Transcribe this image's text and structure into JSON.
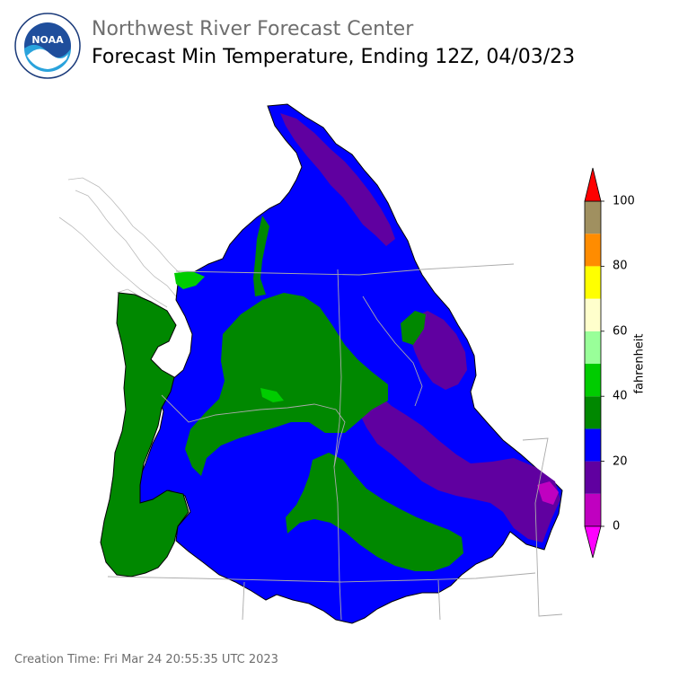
{
  "header": {
    "org_title": "Northwest River Forecast Center",
    "map_title": "Forecast Min Temperature, Ending 12Z, 04/03/23"
  },
  "logo": {
    "text": "NOAA"
  },
  "colorbar": {
    "label": "fahrenheit",
    "ticks": [
      "0",
      "20",
      "40",
      "60",
      "80",
      "100"
    ],
    "bins": [
      {
        "from": 0,
        "to": 10,
        "color": "#c000c0"
      },
      {
        "from": 10,
        "to": 20,
        "color": "#6000a0"
      },
      {
        "from": 20,
        "to": 30,
        "color": "#0000ff"
      },
      {
        "from": 30,
        "to": 40,
        "color": "#008800"
      },
      {
        "from": 40,
        "to": 50,
        "color": "#00cc00"
      },
      {
        "from": 50,
        "to": 60,
        "color": "#99ff99"
      },
      {
        "from": 60,
        "to": 70,
        "color": "#ffffcc"
      },
      {
        "from": 70,
        "to": 80,
        "color": "#ffff00"
      },
      {
        "from": 80,
        "to": 90,
        "color": "#ff8c00"
      },
      {
        "from": 90,
        "to": 100,
        "color": "#a09060"
      }
    ],
    "under_color": "#ff00ff",
    "over_color": "#ff0000"
  },
  "footer": {
    "creation_time": "Creation Time: Fri Mar 24 20:55:35 UTC 2023"
  }
}
